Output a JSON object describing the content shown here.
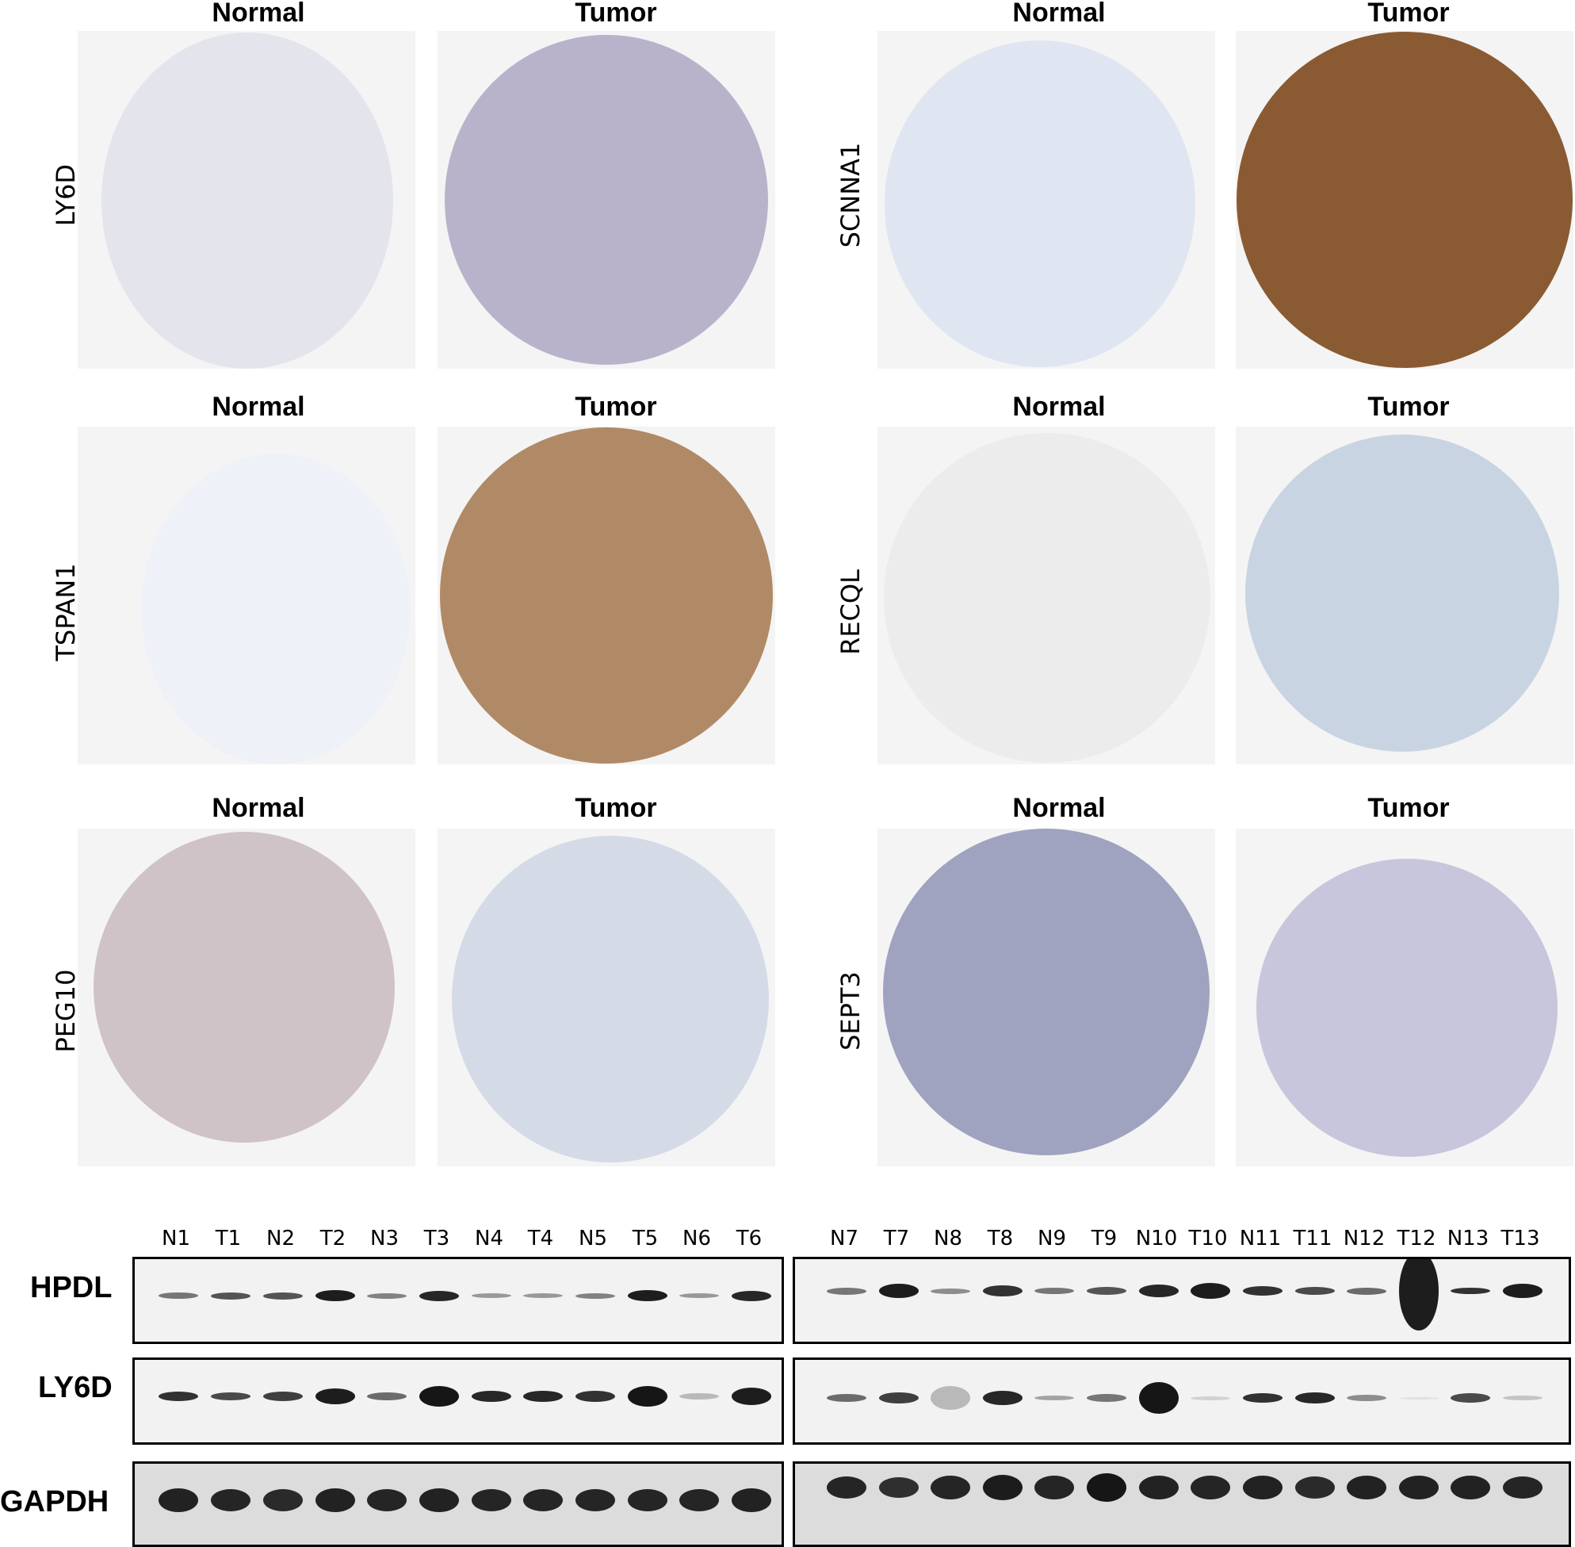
{
  "ihc": {
    "normal_label": "Normal",
    "tumor_label": "Tumor",
    "panels": [
      {
        "gene": "LY6D",
        "normal_stain": "#e4e4ec",
        "tumor_stain": "#b9b2cb"
      },
      {
        "gene": "SCNNA1",
        "normal_stain": "#dfe6f1",
        "tumor_stain": "#8a5a33"
      },
      {
        "gene": "TSPAN1",
        "normal_stain": "#eef2f8",
        "tumor_stain": "#b08a66"
      },
      {
        "gene": "RECQL",
        "normal_stain": "#ececec",
        "tumor_stain": "#c9d4e2"
      },
      {
        "gene": "PEG10",
        "normal_stain": "#cfc3c7",
        "tumor_stain": "#d4dbe7"
      },
      {
        "gene": "SEPT3",
        "normal_stain": "#9fa3c0",
        "tumor_stain": "#c8c6dc"
      }
    ]
  },
  "western_blot": {
    "proteins": [
      "HPDL",
      "LY6D",
      "GAPDH"
    ],
    "left_lanes": [
      "N1",
      "T1",
      "N2",
      "T2",
      "N3",
      "T3",
      "N4",
      "T4",
      "N5",
      "T5",
      "N6",
      "T6"
    ],
    "right_lanes": [
      "N7",
      "T7",
      "N8",
      "T8",
      "N9",
      "T9",
      "N10",
      "T10",
      "N11",
      "T11",
      "N12",
      "T12",
      "N13",
      "T13"
    ]
  }
}
